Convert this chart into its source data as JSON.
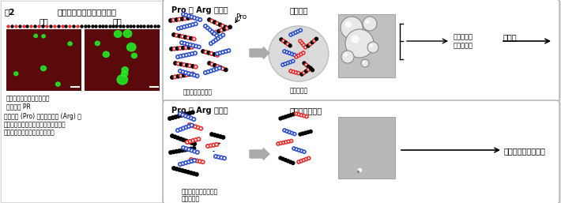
{
  "title": "図2",
  "subtitle": "細胞内での蛋白翻訳の程度",
  "bg_color": "#f0f0f0",
  "left_panel": {
    "label_kogo": "交互",
    "label_renzoku": "連続",
    "caption_lines": [
      "赤：新しく作られた蛋白質",
      "緑：ポリ PR",
      "プロリン (Pro) とアルギニン (Arg) が",
      "交互の場合蛋白翻訳が抑制されるが、",
      "連続する場合は抑制されない。"
    ]
  },
  "top_box": {
    "label": "Pro と Arg が交互",
    "arrow_label": "多価結合",
    "circle_label": "液液相分離",
    "binding_label": "結合エネルギー低",
    "result_label1": "様々な蛋白",
    "result_label2": "の機能阻害",
    "final_label": "細胞死",
    "pro_label": "Pro"
  },
  "bottom_box": {
    "label": "Pro と Arg が連続",
    "arrow_label": "少数分子と結合",
    "binding_label1": "分子同士が並びやすい",
    "binding_label2": "強い結合力",
    "final_label": "蛋白機能に影響せず"
  },
  "colors": {
    "black": "#000000",
    "red": "#e83030",
    "blue": "#3050cc",
    "gray_border": "#999999",
    "light_gray": "#d8d8d8",
    "cluster_gray": "#cccccc",
    "arrow_gray": "#aaaaaa",
    "mic_gray": "#b0b0b0",
    "white": "#ffffff"
  }
}
